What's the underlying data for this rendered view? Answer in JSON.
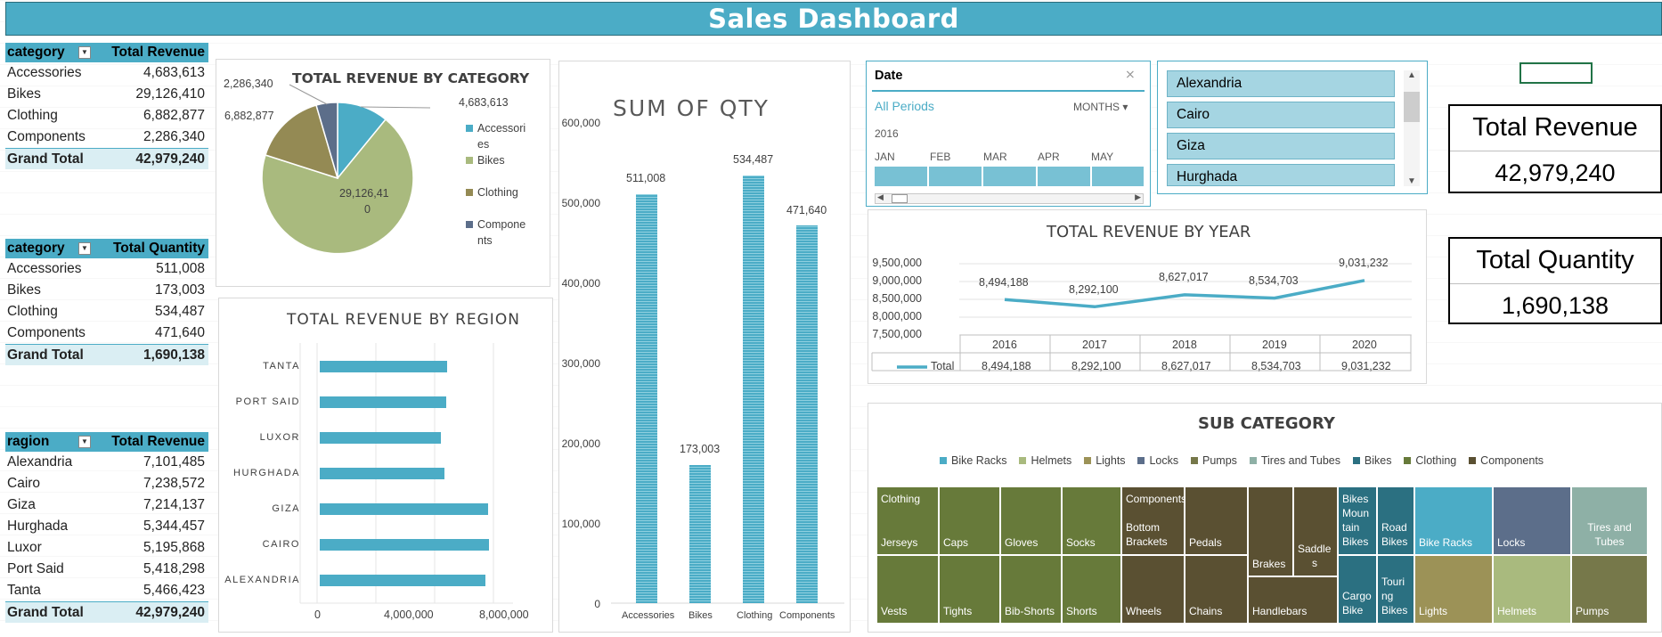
{
  "header": {
    "title": "Sales Dashboard"
  },
  "pivot_category_revenue": {
    "col1": "category",
    "col2": "Total Revenue",
    "rows": [
      {
        "label": "Accessories",
        "value": "4,683,613"
      },
      {
        "label": "Bikes",
        "value": "29,126,410"
      },
      {
        "label": "Clothing",
        "value": "6,882,877"
      },
      {
        "label": "Components",
        "value": "2,286,340"
      }
    ],
    "total_label": "Grand Total",
    "total_value": "42,979,240"
  },
  "pivot_category_quantity": {
    "col1": "category",
    "col2": "Total Quantity",
    "rows": [
      {
        "label": "Accessories",
        "value": "511,008"
      },
      {
        "label": "Bikes",
        "value": "173,003"
      },
      {
        "label": "Clothing",
        "value": "534,487"
      },
      {
        "label": "Components",
        "value": "471,640"
      }
    ],
    "total_label": "Grand Total",
    "total_value": "1,690,138"
  },
  "pivot_region_revenue": {
    "col1": "ragion",
    "col2": "Total Revenue",
    "rows": [
      {
        "label": "Alexandria",
        "value": "7,101,485"
      },
      {
        "label": "Cairo",
        "value": "7,238,572"
      },
      {
        "label": "Giza",
        "value": "7,214,137"
      },
      {
        "label": "Hurghada",
        "value": "5,344,457"
      },
      {
        "label": "Luxor",
        "value": "5,195,868"
      },
      {
        "label": "Port Said",
        "value": "5,418,298"
      },
      {
        "label": "Tanta",
        "value": "5,466,423"
      }
    ],
    "total_label": "Grand Total",
    "total_value": "42,979,240"
  },
  "pie_chart": {
    "title": "TOTAL REVENUE BY CATEGORY",
    "legend": [
      {
        "name_l1": "Accessori",
        "name_l2": "es",
        "color": "#4bacc6"
      },
      {
        "name_l1": "Bikes",
        "name_l2": "",
        "color": "#a9ba7e"
      },
      {
        "name_l1": "Clothing",
        "name_l2": "",
        "color": "#948a54"
      },
      {
        "name_l1": "Compone",
        "name_l2": "nts",
        "color": "#5c6e8a"
      }
    ],
    "labels": {
      "accessories": "4,683,613",
      "bikes_l1": "29,126,41",
      "bikes_l2": "0",
      "clothing": "6,882,877",
      "components": "2,286,340"
    }
  },
  "qty_chart": {
    "title": "SUM OF QTY",
    "y_ticks": [
      "600,000",
      "500,000",
      "400,000",
      "300,000",
      "200,000",
      "100,000",
      "0"
    ],
    "categories": [
      "Accessories",
      "Bikes",
      "Clothing",
      "Components"
    ],
    "value_labels": [
      "511,008",
      "173,003",
      "534,487",
      "471,640"
    ]
  },
  "region_chart": {
    "title": "TOTAL REVENUE BY REGION",
    "categories": [
      "TANTA",
      "PORT SAID",
      "LUXOR",
      "HURGHADA",
      "GIZA",
      "CAIRO",
      "ALEXANDRIA"
    ],
    "x_ticks": [
      "0",
      "4,000,000",
      "8,000,000"
    ]
  },
  "date_slicer": {
    "title": "Date",
    "all_periods": "All Periods",
    "level": "MONTHS",
    "year": "2016",
    "months": [
      "JAN",
      "FEB",
      "MAR",
      "APR",
      "MAY"
    ]
  },
  "city_slicer": {
    "items": [
      "Alexandria",
      "Cairo",
      "Giza",
      "Hurghada"
    ]
  },
  "kpi_revenue": {
    "label": "Total Revenue",
    "value": "42,979,240"
  },
  "kpi_quantity": {
    "label": "Total Quantity",
    "value": "1,690,138"
  },
  "year_chart": {
    "title": "TOTAL REVENUE BY YEAR",
    "y_ticks": [
      "9,500,000",
      "9,000,000",
      "8,500,000",
      "8,000,000",
      "7,500,000"
    ],
    "years": [
      "2016",
      "2017",
      "2018",
      "2019",
      "2020"
    ],
    "value_labels": [
      "8,494,188",
      "8,292,100",
      "8,627,017",
      "8,534,703",
      "9,031,232"
    ],
    "series_name": "Total",
    "color": "#4bacc6"
  },
  "treemap": {
    "title": "SUB CATEGORY",
    "legend": [
      {
        "name": "Bike Racks",
        "color": "#4bacc6"
      },
      {
        "name": "Helmets",
        "color": "#a9ba7e"
      },
      {
        "name": "Lights",
        "color": "#9c9257"
      },
      {
        "name": "Locks",
        "color": "#5c6e8a"
      },
      {
        "name": "Pumps",
        "color": "#76784a"
      },
      {
        "name": "Tires and Tubes",
        "color": "#8eb0a6"
      },
      {
        "name": "Bikes",
        "color": "#2b7081"
      },
      {
        "name": "Clothing",
        "color": "#677a3a"
      },
      {
        "name": "Components",
        "color": "#5a5032"
      }
    ],
    "labels": {
      "clothing_group": "Clothing",
      "components_group": "Components",
      "jerseys": "Jerseys",
      "caps": "Caps",
      "gloves": "Gloves",
      "socks": "Socks",
      "vests": "Vests",
      "tights": "Tights",
      "bib_shorts": "Bib-Shorts",
      "shorts": "Shorts",
      "bottom_brackets_l1": "Bottom",
      "bottom_brackets_l2": "Brackets",
      "pedals": "Pedals",
      "wheels": "Wheels",
      "chains": "Chains",
      "brakes": "Brakes",
      "saddles_l1": "Saddle",
      "saddles_l2": "s",
      "handlebars": "Handlebars",
      "mountain_l1": "Bikes",
      "mountain_l2": "Moun",
      "mountain_l3": "tain",
      "mountain_l4": "Bikes",
      "road_l1": "Road",
      "road_l2": "Bikes",
      "cargo_l1": "Cargo",
      "cargo_l2": "Bike",
      "touring_l1": "Touri",
      "touring_l2": "ng",
      "touring_l3": "Bikes",
      "bike_racks": "Bike Racks",
      "locks": "Locks",
      "tires_l1": "Tires and",
      "tires_l2": "Tubes",
      "lights": "Lights",
      "helmets": "Helmets",
      "pumps": "Pumps"
    }
  }
}
